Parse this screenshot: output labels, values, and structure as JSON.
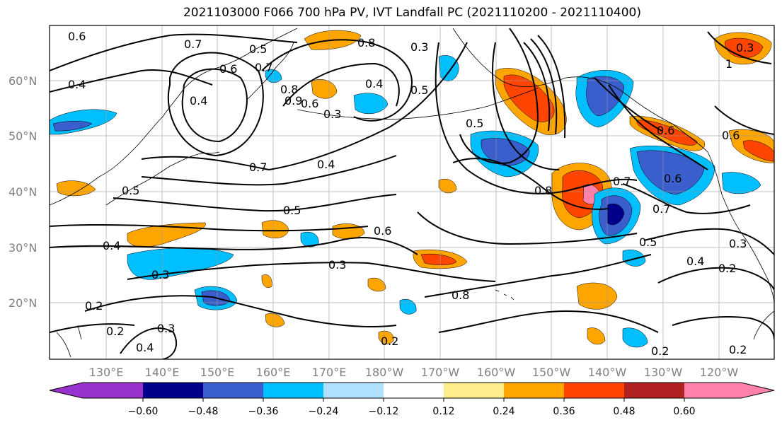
{
  "title": "2021103000 F066 700 hPa PV, IVT Landfall PC (2021110200 - 2021110400)",
  "lat_labels": [
    "60°N",
    "50°N",
    "40°N",
    "30°N",
    "20°N"
  ],
  "lon_labels": [
    "130°E",
    "140°E",
    "150°E",
    "160°E",
    "170°E",
    "180°W",
    "170°W",
    "160°W",
    "150°W",
    "140°W",
    "130°W",
    "120°W"
  ],
  "colorbar": {
    "colors": [
      "#9932cc",
      "#00008b",
      "#3a5fcd",
      "#00bfff",
      "#b0e2ff",
      "#ffffff",
      "#ffec8b",
      "#ffa500",
      "#ff4500",
      "#b22222",
      "#ff82ab"
    ],
    "tick_labels": [
      "−0.60",
      "−0.48",
      "−0.36",
      "−0.24",
      "−0.12",
      "0.12",
      "0.24",
      "0.36",
      "0.48",
      "0.60"
    ]
  },
  "contour_labels": [
    "0.6",
    "0.7",
    "0.5",
    "0.4",
    "0.6",
    "0.7",
    "0.8",
    "0.9",
    "0.4",
    "0.8",
    "0.6",
    "0.3",
    "0.4",
    "0.5",
    "0.3",
    "0.5",
    "0.7",
    "0.4",
    "0.5",
    "0.6",
    "0.3",
    "0.3",
    "0.5",
    "0.4",
    "0.2",
    "0.2",
    "0.3",
    "0.4",
    "0.8",
    "0.7",
    "0.7",
    "0.6",
    "0.5",
    "0.4",
    "0.3",
    "0.2",
    "0.2",
    "0.6",
    "0.6",
    "0.2",
    "1",
    "0.3",
    "0.2",
    "0.8"
  ]
}
